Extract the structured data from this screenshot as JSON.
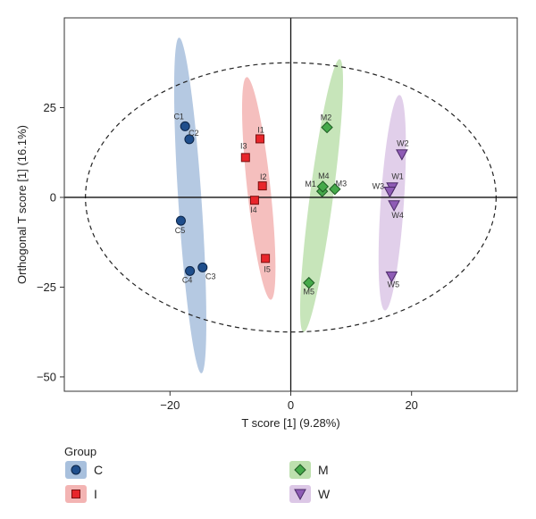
{
  "chart_data": {
    "type": "scatter",
    "title": "",
    "xlabel": "T score [1] (9.28%)",
    "ylabel": "Orthogonal T score [1] (16.1%)",
    "xlim": [
      -37.5,
      37.5
    ],
    "ylim": [
      -54,
      50
    ],
    "x_ticks": [
      -20,
      0,
      20
    ],
    "x_tick_labels": [
      "−20",
      "0",
      "20"
    ],
    "y_ticks": [
      -50,
      -25,
      0,
      25
    ],
    "y_tick_labels": [
      "−50",
      "−25",
      "0",
      "25"
    ],
    "grid": false,
    "reference_lines": {
      "x": 0,
      "y": 0
    },
    "hotelling_ellipse": {
      "cx": 0,
      "cy": 0,
      "rx": 34,
      "ry": 37.5,
      "style": "dashed"
    },
    "legend": {
      "title": "Group",
      "placement": "bottom",
      "entries": [
        {
          "label": "C",
          "marker": "circle",
          "color": "#1f4e8c"
        },
        {
          "label": "I",
          "marker": "square",
          "color": "#e8262b"
        },
        {
          "label": "M",
          "marker": "diamond",
          "color": "#45a94a"
        },
        {
          "label": "W",
          "marker": "triangle-down",
          "color": "#8e5bb5"
        }
      ]
    },
    "series": [
      {
        "name": "C",
        "marker": "circle",
        "color": "#1f4e8c",
        "ellipse_color": "#a8c0dd",
        "ellipse": {
          "x1": -18.5,
          "y1": 44.5,
          "x2": -14.8,
          "y2": -49
        },
        "points": [
          {
            "label": "C1",
            "x": -17.5,
            "y": 19.8
          },
          {
            "label": "C2",
            "x": -16.8,
            "y": 16.2
          },
          {
            "label": "C3",
            "x": -14.6,
            "y": -19.5
          },
          {
            "label": "C4",
            "x": -16.7,
            "y": -20.5
          },
          {
            "label": "C5",
            "x": -18.2,
            "y": -6.5
          }
        ]
      },
      {
        "name": "I",
        "marker": "square",
        "color": "#e8262b",
        "ellipse_color": "#f3b4b3",
        "ellipse": {
          "x1": -7.3,
          "y1": 33.5,
          "x2": -3.3,
          "y2": -28.5
        },
        "points": [
          {
            "label": "I1",
            "x": -5.1,
            "y": 16.3
          },
          {
            "label": "I2",
            "x": -4.7,
            "y": 3.2
          },
          {
            "label": "I3",
            "x": -7.5,
            "y": 11.1
          },
          {
            "label": "I4",
            "x": -6.0,
            "y": -0.8
          },
          {
            "label": "I5",
            "x": -4.2,
            "y": -17.0
          }
        ]
      },
      {
        "name": "M",
        "marker": "diamond",
        "color": "#45a94a",
        "ellipse_color": "#bde0ae",
        "ellipse": {
          "x1": 8.1,
          "y1": 38.5,
          "x2": 2.1,
          "y2": -37.5
        },
        "points": [
          {
            "label": "M1",
            "x": 5.2,
            "y": 1.7
          },
          {
            "label": "M2",
            "x": 6.0,
            "y": 19.5
          },
          {
            "label": "M3",
            "x": 7.3,
            "y": 2.3
          },
          {
            "label": "M4",
            "x": 5.3,
            "y": 3.0
          },
          {
            "label": "M5",
            "x": 3.0,
            "y": -23.8
          }
        ]
      },
      {
        "name": "W",
        "marker": "triangle-down",
        "color": "#8e5bb5",
        "ellipse_color": "#dcc7e6",
        "ellipse": {
          "x1": 18.0,
          "y1": 28.5,
          "x2": 15.6,
          "y2": -31.5
        },
        "points": [
          {
            "label": "W1",
            "x": 16.8,
            "y": 2.8
          },
          {
            "label": "W2",
            "x": 18.4,
            "y": 12.0
          },
          {
            "label": "W3",
            "x": 16.4,
            "y": 1.6
          },
          {
            "label": "W4",
            "x": 17.1,
            "y": -2.2
          },
          {
            "label": "W5",
            "x": 16.7,
            "y": -22.0
          }
        ]
      }
    ]
  }
}
